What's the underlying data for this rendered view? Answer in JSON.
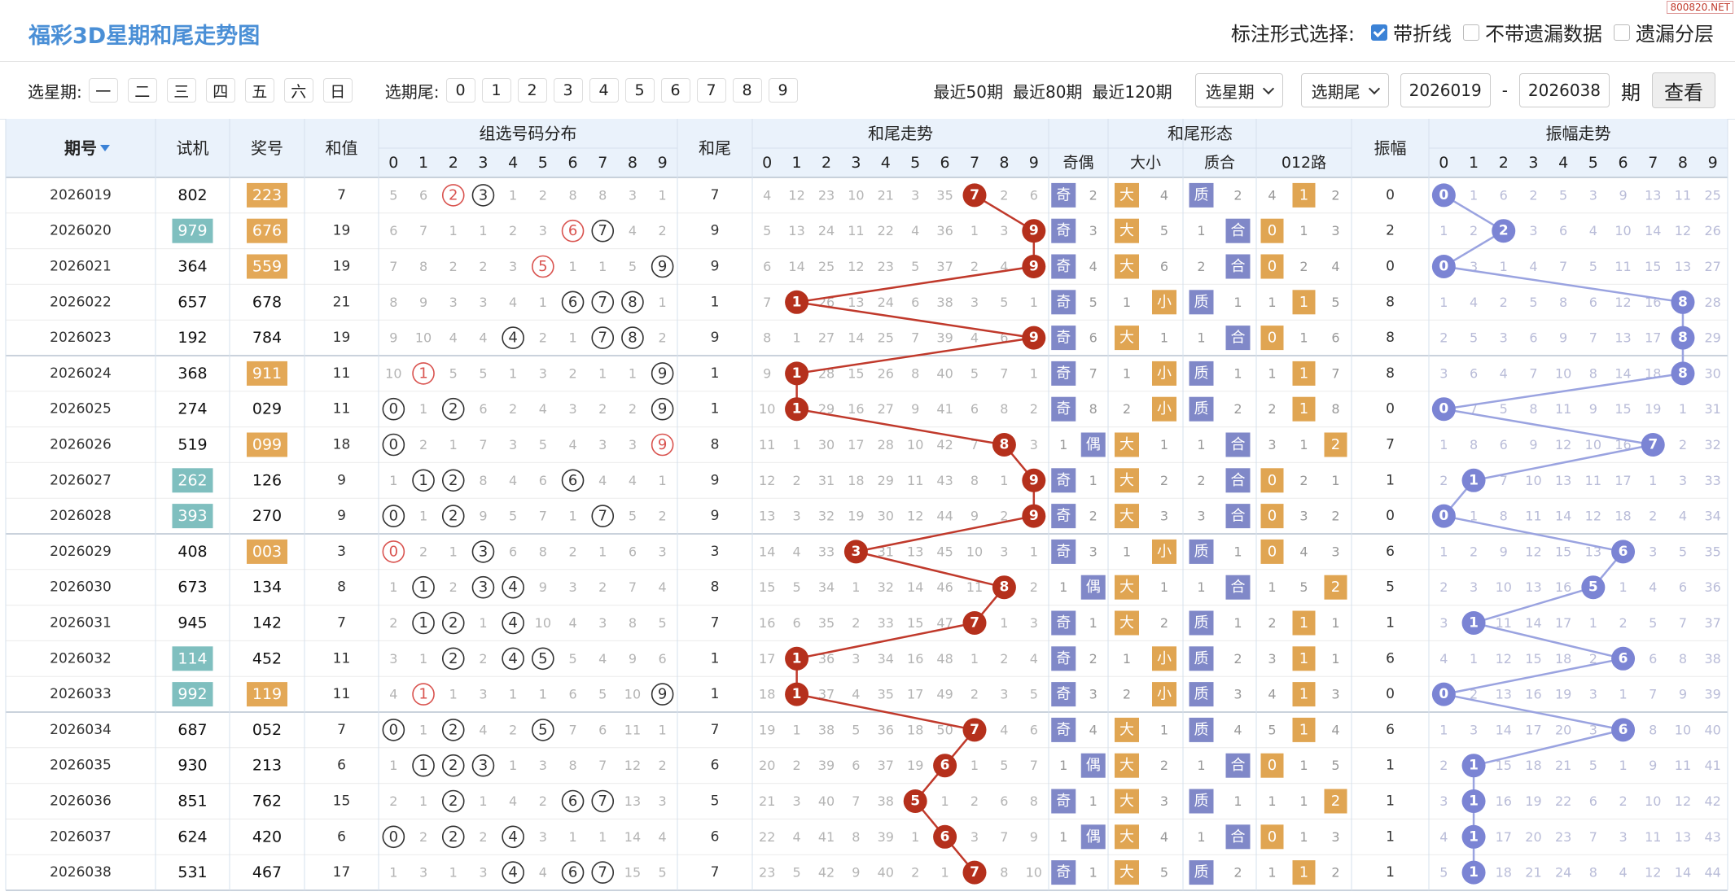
{
  "header": {
    "title": "福彩3D星期和尾走势图",
    "mark_label": "标注形式选择:",
    "options": [
      {
        "label": "带折线",
        "checked": true
      },
      {
        "label": "不带遗漏数据",
        "checked": false
      },
      {
        "label": "遗漏分层",
        "checked": false
      }
    ],
    "watermark": "800820.NET"
  },
  "filters": {
    "weekday_label": "选星期:",
    "weekdays": [
      "一",
      "二",
      "三",
      "四",
      "五",
      "六",
      "日"
    ],
    "tail_label": "选期尾:",
    "tails": [
      "0",
      "1",
      "2",
      "3",
      "4",
      "5",
      "6",
      "7",
      "8",
      "9"
    ],
    "recent": [
      "最近50期",
      "最近80期",
      "最近120期"
    ],
    "selects": [
      "选星期",
      "选期尾"
    ],
    "start": "2026019",
    "sep": "-",
    "end": "2026038",
    "unit": "期",
    "button": "查看"
  },
  "table": {
    "columns": [
      "期号",
      "试机",
      "奖号",
      "和值",
      "组选号码分布",
      "和尾",
      "和尾走势",
      "和尾形态",
      "振幅",
      "振幅走势"
    ],
    "forms": [
      "奇偶",
      "大小",
      "质合",
      "012路"
    ],
    "digits": [
      "0",
      "1",
      "2",
      "3",
      "4",
      "5",
      "6",
      "7",
      "8",
      "9"
    ],
    "rows": [
      [
        "2026019",
        "802",
        "223",
        "7",
        [
          "5",
          "6",
          "2",
          "3",
          "1",
          "2",
          "8",
          "8",
          "3",
          "1"
        ],
        "7",
        [
          "4",
          "12",
          "23",
          "10",
          "21",
          "3",
          "35",
          "7",
          "2",
          "6"
        ],
        [
          "奇",
          "2"
        ],
        [
          "大",
          "4"
        ],
        [
          "质",
          "2"
        ],
        [
          "4",
          "1",
          "2"
        ],
        "0",
        [
          "0",
          "1",
          "6",
          "2",
          "5",
          "3",
          "9",
          "13",
          "11",
          "25"
        ]
      ],
      [
        "2026020",
        "979",
        "676",
        "19",
        [
          "6",
          "7",
          "1",
          "1",
          "2",
          "3",
          "6",
          "7",
          "4",
          "2"
        ],
        "9",
        [
          "5",
          "13",
          "24",
          "11",
          "22",
          "4",
          "36",
          "1",
          "3",
          "9"
        ],
        [
          "奇",
          "3"
        ],
        [
          "大",
          "5"
        ],
        [
          "1",
          "合"
        ],
        [
          "0",
          "1",
          "3"
        ],
        "2",
        [
          "1",
          "2",
          "2",
          "3",
          "6",
          "4",
          "10",
          "14",
          "12",
          "26"
        ]
      ],
      [
        "2026021",
        "364",
        "559",
        "19",
        [
          "7",
          "8",
          "2",
          "2",
          "3",
          "5",
          "1",
          "1",
          "5",
          "9"
        ],
        "9",
        [
          "6",
          "14",
          "25",
          "12",
          "23",
          "5",
          "37",
          "2",
          "4",
          "9"
        ],
        [
          "奇",
          "4"
        ],
        [
          "大",
          "6"
        ],
        [
          "2",
          "合"
        ],
        [
          "0",
          "2",
          "4"
        ],
        "0",
        [
          "0",
          "3",
          "1",
          "4",
          "7",
          "5",
          "11",
          "15",
          "13",
          "27"
        ]
      ],
      [
        "2026022",
        "657",
        "678",
        "21",
        [
          "8",
          "9",
          "3",
          "3",
          "4",
          "1",
          "6",
          "7",
          "8",
          "1"
        ],
        "1",
        [
          "7",
          "1",
          "26",
          "13",
          "24",
          "6",
          "38",
          "3",
          "5",
          "1"
        ],
        [
          "奇",
          "5"
        ],
        [
          "1",
          "小"
        ],
        [
          "质",
          "1"
        ],
        [
          "1",
          "1",
          "5"
        ],
        "8",
        [
          "1",
          "4",
          "2",
          "5",
          "8",
          "6",
          "12",
          "16",
          "8",
          "28"
        ]
      ],
      [
        "2026023",
        "192",
        "784",
        "19",
        [
          "9",
          "10",
          "4",
          "4",
          "4",
          "2",
          "1",
          "7",
          "8",
          "2"
        ],
        "9",
        [
          "8",
          "1",
          "27",
          "14",
          "25",
          "7",
          "39",
          "4",
          "6",
          "9"
        ],
        [
          "奇",
          "6"
        ],
        [
          "大",
          "1"
        ],
        [
          "1",
          "合"
        ],
        [
          "0",
          "1",
          "6"
        ],
        "8",
        [
          "2",
          "5",
          "3",
          "6",
          "9",
          "7",
          "13",
          "17",
          "8",
          "29"
        ]
      ],
      [
        "2026024",
        "368",
        "911",
        "11",
        [
          "10",
          "1",
          "5",
          "5",
          "1",
          "3",
          "2",
          "1",
          "1",
          "9"
        ],
        "1",
        [
          "9",
          "1",
          "28",
          "15",
          "26",
          "8",
          "40",
          "5",
          "7",
          "1"
        ],
        [
          "奇",
          "7"
        ],
        [
          "1",
          "小"
        ],
        [
          "质",
          "1"
        ],
        [
          "1",
          "1",
          "7"
        ],
        "8",
        [
          "3",
          "6",
          "4",
          "7",
          "10",
          "8",
          "14",
          "18",
          "8",
          "30"
        ]
      ],
      [
        "2026025",
        "274",
        "029",
        "11",
        [
          "0",
          "1",
          "2",
          "6",
          "2",
          "4",
          "3",
          "2",
          "2",
          "9"
        ],
        "1",
        [
          "10",
          "1",
          "29",
          "16",
          "27",
          "9",
          "41",
          "6",
          "8",
          "2"
        ],
        [
          "奇",
          "8"
        ],
        [
          "2",
          "小"
        ],
        [
          "质",
          "2"
        ],
        [
          "2",
          "1",
          "8"
        ],
        "0",
        [
          "0",
          "7",
          "5",
          "8",
          "11",
          "9",
          "15",
          "19",
          "1",
          "31"
        ]
      ],
      [
        "2026026",
        "519",
        "099",
        "18",
        [
          "0",
          "2",
          "1",
          "7",
          "3",
          "5",
          "4",
          "3",
          "3",
          "9"
        ],
        "8",
        [
          "11",
          "1",
          "30",
          "17",
          "28",
          "10",
          "42",
          "7",
          "8",
          "3"
        ],
        [
          "1",
          "偶"
        ],
        [
          "大",
          "1"
        ],
        [
          "1",
          "合"
        ],
        [
          "3",
          "1",
          "2"
        ],
        "7",
        [
          "1",
          "8",
          "6",
          "9",
          "12",
          "10",
          "16",
          "7",
          "2",
          "32"
        ]
      ],
      [
        "2026027",
        "262",
        "126",
        "9",
        [
          "1",
          "1",
          "2",
          "8",
          "4",
          "6",
          "6",
          "4",
          "4",
          "1"
        ],
        "9",
        [
          "12",
          "2",
          "31",
          "18",
          "29",
          "11",
          "43",
          "8",
          "1",
          "9"
        ],
        [
          "奇",
          "1"
        ],
        [
          "大",
          "2"
        ],
        [
          "2",
          "合"
        ],
        [
          "0",
          "2",
          "1"
        ],
        "1",
        [
          "2",
          "1",
          "7",
          "10",
          "13",
          "11",
          "17",
          "1",
          "3",
          "33"
        ]
      ],
      [
        "2026028",
        "393",
        "270",
        "9",
        [
          "0",
          "1",
          "2",
          "9",
          "5",
          "7",
          "1",
          "7",
          "5",
          "2"
        ],
        "9",
        [
          "13",
          "3",
          "32",
          "19",
          "30",
          "12",
          "44",
          "9",
          "2",
          "9"
        ],
        [
          "奇",
          "2"
        ],
        [
          "大",
          "3"
        ],
        [
          "3",
          "合"
        ],
        [
          "0",
          "3",
          "2"
        ],
        "0",
        [
          "0",
          "1",
          "8",
          "11",
          "14",
          "12",
          "18",
          "2",
          "4",
          "34"
        ]
      ],
      [
        "2026029",
        "408",
        "003",
        "3",
        [
          "0",
          "2",
          "1",
          "3",
          "6",
          "8",
          "2",
          "1",
          "6",
          "3"
        ],
        "3",
        [
          "14",
          "4",
          "33",
          "3",
          "31",
          "13",
          "45",
          "10",
          "3",
          "1"
        ],
        [
          "奇",
          "3"
        ],
        [
          "1",
          "小"
        ],
        [
          "质",
          "1"
        ],
        [
          "0",
          "4",
          "3"
        ],
        "6",
        [
          "1",
          "2",
          "9",
          "12",
          "15",
          "13",
          "6",
          "3",
          "5",
          "35"
        ]
      ],
      [
        "2026030",
        "673",
        "134",
        "8",
        [
          "1",
          "1",
          "2",
          "3",
          "4",
          "9",
          "3",
          "2",
          "7",
          "4"
        ],
        "8",
        [
          "15",
          "5",
          "34",
          "1",
          "32",
          "14",
          "46",
          "11",
          "8",
          "2"
        ],
        [
          "1",
          "偶"
        ],
        [
          "大",
          "1"
        ],
        [
          "1",
          "合"
        ],
        [
          "1",
          "5",
          "2"
        ],
        "5",
        [
          "2",
          "3",
          "10",
          "13",
          "16",
          "5",
          "1",
          "4",
          "6",
          "36"
        ]
      ],
      [
        "2026031",
        "945",
        "142",
        "7",
        [
          "2",
          "1",
          "2",
          "1",
          "4",
          "10",
          "4",
          "3",
          "8",
          "5"
        ],
        "7",
        [
          "16",
          "6",
          "35",
          "2",
          "33",
          "15",
          "47",
          "7",
          "1",
          "3"
        ],
        [
          "奇",
          "1"
        ],
        [
          "大",
          "2"
        ],
        [
          "质",
          "1"
        ],
        [
          "2",
          "1",
          "1"
        ],
        "1",
        [
          "3",
          "1",
          "11",
          "14",
          "17",
          "1",
          "2",
          "5",
          "7",
          "37"
        ]
      ],
      [
        "2026032",
        "114",
        "452",
        "11",
        [
          "3",
          "1",
          "2",
          "2",
          "4",
          "5",
          "5",
          "4",
          "9",
          "6"
        ],
        "1",
        [
          "17",
          "1",
          "36",
          "3",
          "34",
          "16",
          "48",
          "1",
          "2",
          "4"
        ],
        [
          "奇",
          "2"
        ],
        [
          "1",
          "小"
        ],
        [
          "质",
          "2"
        ],
        [
          "3",
          "1",
          "1"
        ],
        "6",
        [
          "4",
          "1",
          "12",
          "15",
          "18",
          "2",
          "6",
          "6",
          "8",
          "38"
        ]
      ],
      [
        "2026033",
        "992",
        "119",
        "11",
        [
          "4",
          "1",
          "1",
          "3",
          "1",
          "1",
          "6",
          "5",
          "10",
          "9"
        ],
        "1",
        [
          "18",
          "1",
          "37",
          "4",
          "35",
          "17",
          "49",
          "2",
          "3",
          "5"
        ],
        [
          "奇",
          "3"
        ],
        [
          "2",
          "小"
        ],
        [
          "质",
          "3"
        ],
        [
          "4",
          "1",
          "3"
        ],
        "0",
        [
          "0",
          "2",
          "13",
          "16",
          "19",
          "3",
          "1",
          "7",
          "9",
          "39"
        ]
      ],
      [
        "2026034",
        "687",
        "052",
        "7",
        [
          "0",
          "1",
          "2",
          "4",
          "2",
          "5",
          "7",
          "6",
          "11",
          "1"
        ],
        "7",
        [
          "19",
          "1",
          "38",
          "5",
          "36",
          "18",
          "50",
          "7",
          "4",
          "6"
        ],
        [
          "奇",
          "4"
        ],
        [
          "大",
          "1"
        ],
        [
          "质",
          "4"
        ],
        [
          "5",
          "1",
          "4"
        ],
        "6",
        [
          "1",
          "3",
          "14",
          "17",
          "20",
          "3",
          "6",
          "8",
          "10",
          "40"
        ]
      ],
      [
        "2026035",
        "930",
        "213",
        "6",
        [
          "1",
          "1",
          "2",
          "3",
          "1",
          "3",
          "8",
          "7",
          "12",
          "2"
        ],
        "6",
        [
          "20",
          "2",
          "39",
          "6",
          "37",
          "19",
          "6",
          "1",
          "5",
          "7"
        ],
        [
          "1",
          "偶"
        ],
        [
          "大",
          "2"
        ],
        [
          "1",
          "合"
        ],
        [
          "0",
          "1",
          "5"
        ],
        "1",
        [
          "2",
          "1",
          "15",
          "18",
          "21",
          "5",
          "1",
          "9",
          "11",
          "41"
        ]
      ],
      [
        "2026036",
        "851",
        "762",
        "15",
        [
          "2",
          "1",
          "2",
          "1",
          "4",
          "2",
          "6",
          "7",
          "13",
          "3"
        ],
        "5",
        [
          "21",
          "3",
          "40",
          "7",
          "38",
          "5",
          "1",
          "2",
          "6",
          "8"
        ],
        [
          "奇",
          "1"
        ],
        [
          "大",
          "3"
        ],
        [
          "质",
          "1"
        ],
        [
          "1",
          "1",
          "2"
        ],
        "1",
        [
          "3",
          "1",
          "16",
          "19",
          "22",
          "6",
          "2",
          "10",
          "12",
          "42"
        ]
      ],
      [
        "2026037",
        "624",
        "420",
        "6",
        [
          "0",
          "2",
          "2",
          "2",
          "4",
          "3",
          "1",
          "1",
          "14",
          "4"
        ],
        "6",
        [
          "22",
          "4",
          "41",
          "8",
          "39",
          "1",
          "6",
          "3",
          "7",
          "9"
        ],
        [
          "1",
          "偶"
        ],
        [
          "大",
          "4"
        ],
        [
          "1",
          "合"
        ],
        [
          "0",
          "1",
          "3"
        ],
        "1",
        [
          "4",
          "1",
          "17",
          "20",
          "23",
          "7",
          "3",
          "11",
          "13",
          "43"
        ]
      ],
      [
        "2026038",
        "531",
        "467",
        "17",
        [
          "1",
          "3",
          "1",
          "3",
          "4",
          "4",
          "6",
          "7",
          "15",
          "5"
        ],
        "7",
        [
          "23",
          "5",
          "42",
          "9",
          "40",
          "2",
          "1",
          "7",
          "8",
          "10"
        ],
        [
          "奇",
          "1"
        ],
        [
          "大",
          "5"
        ],
        [
          "质",
          "2"
        ],
        [
          "1",
          "1",
          "2"
        ],
        "1",
        [
          "5",
          "1",
          "18",
          "21",
          "24",
          "8",
          "4",
          "12",
          "14",
          "44"
        ]
      ]
    ]
  }
}
